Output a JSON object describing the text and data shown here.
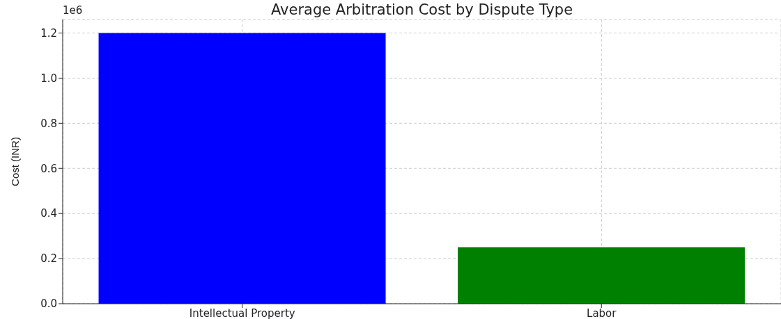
{
  "chart_data": {
    "type": "bar",
    "title": "Average Arbitration Cost by Dispute Type",
    "ylabel": "Cost (INR)",
    "categories": [
      "Intellectual Property",
      "Labor"
    ],
    "values": [
      1.2,
      0.25
    ],
    "colors": [
      "#0000ff",
      "#008000"
    ],
    "ylim": [
      0,
      1.26
    ],
    "yticks": [
      {
        "value": 0,
        "label": "0.0"
      },
      0.2,
      0.4,
      0.6,
      0.8,
      {
        "value": 1,
        "label": "1.0"
      },
      1.2
    ],
    "annotations": [
      "1e6"
    ],
    "grid": true
  }
}
